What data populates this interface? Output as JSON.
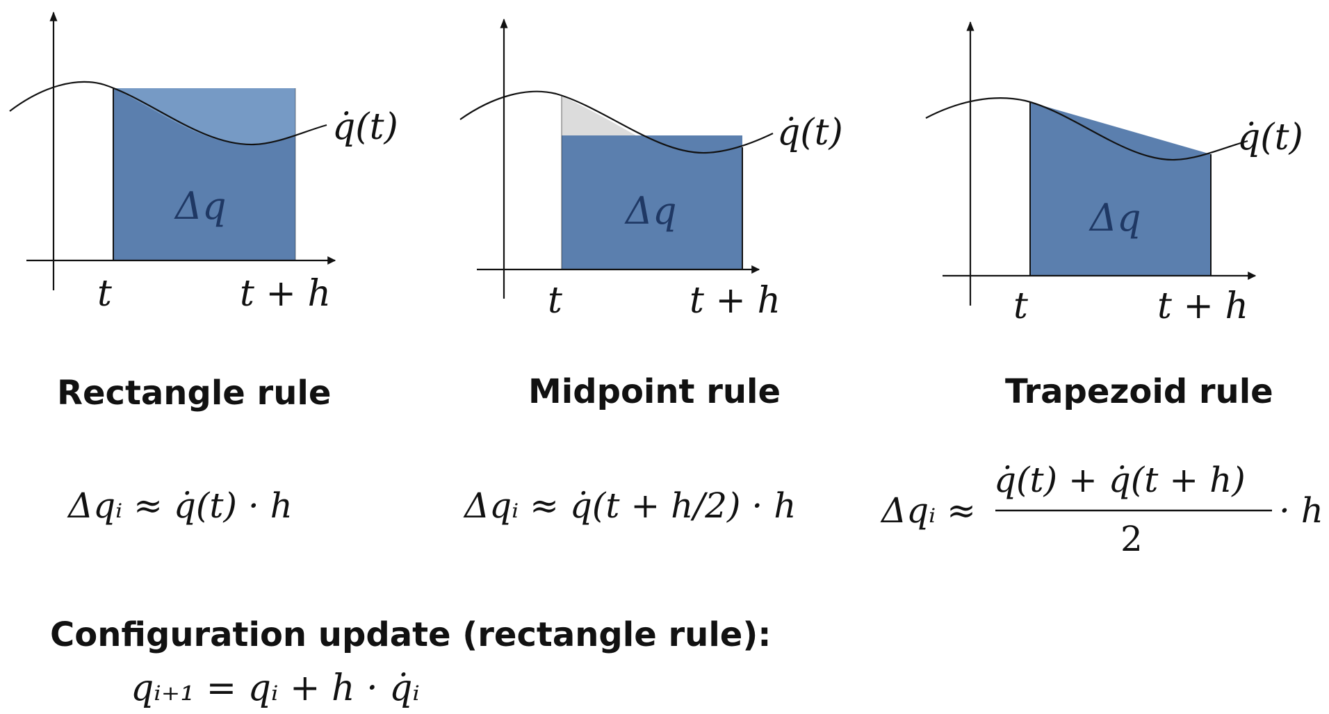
{
  "colors": {
    "fill": "#5b7fae",
    "fill_light": "#6f95c2",
    "excess": "#dcdcdc",
    "ink": "#111111",
    "area_label": "#1f3864"
  },
  "panels": [
    {
      "id": "rectangle",
      "curve_label": "q̇(t)",
      "area_label": "Δq",
      "tick_left": "t",
      "tick_right": "t + h",
      "title": "Rectangle rule",
      "formula": "Δqᵢ ≈ q̇(t) · h"
    },
    {
      "id": "midpoint",
      "curve_label": "q̇(t)",
      "area_label": "Δq",
      "tick_left": "t",
      "tick_right": "t + h",
      "title": "Midpoint rule",
      "formula": "Δqᵢ ≈ q̇(t + h/2) · h"
    },
    {
      "id": "trapezoid",
      "curve_label": "q̇(t)",
      "area_label": "Δq",
      "tick_left": "t",
      "tick_right": "t + h",
      "title": "Trapezoid rule",
      "formula_lhs": "Δqᵢ ≈",
      "formula_numerator": "q̇(t) + q̇(t + h)",
      "formula_denominator": "2",
      "formula_tail": "· h"
    }
  ],
  "update": {
    "heading": "Configuration update (rectangle rule):",
    "formula": "qᵢ₊₁ = qᵢ + h · q̇ᵢ"
  }
}
